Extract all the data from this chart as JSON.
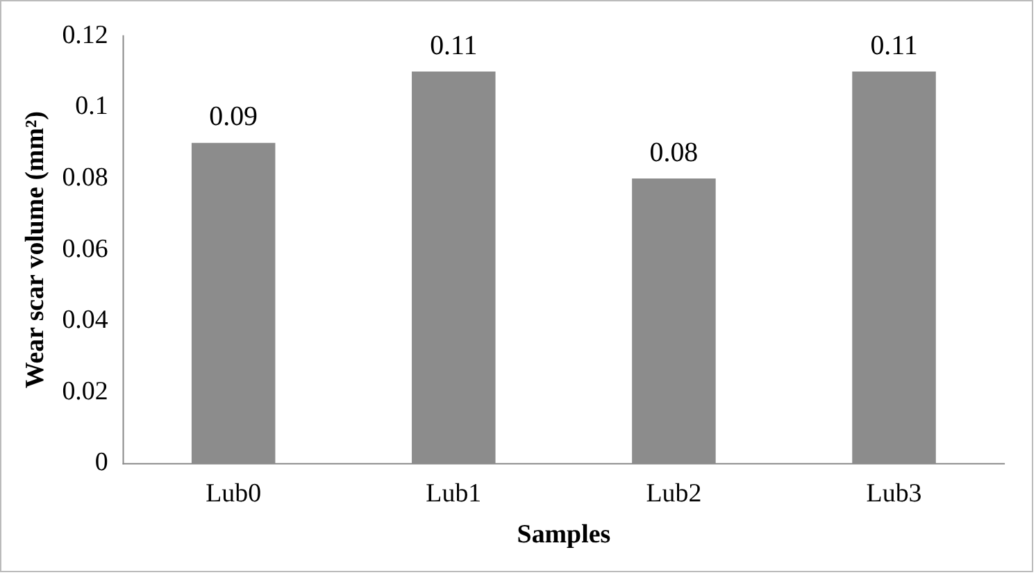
{
  "chart_data": {
    "type": "bar",
    "xlabel": "Samples",
    "ylabel": "Wear scar volume (mm²)",
    "categories": [
      "Lub0",
      "Lub1",
      "Lub2",
      "Lub3"
    ],
    "values": [
      0.09,
      0.11,
      0.08,
      0.11
    ],
    "color": "#8c8c8c",
    "ylim": [
      0,
      0.12
    ],
    "yticks": [
      0,
      0.02,
      0.04,
      0.06,
      0.08,
      0.1,
      0.12
    ],
    "grid": false,
    "legend": false,
    "data_labels": true
  }
}
